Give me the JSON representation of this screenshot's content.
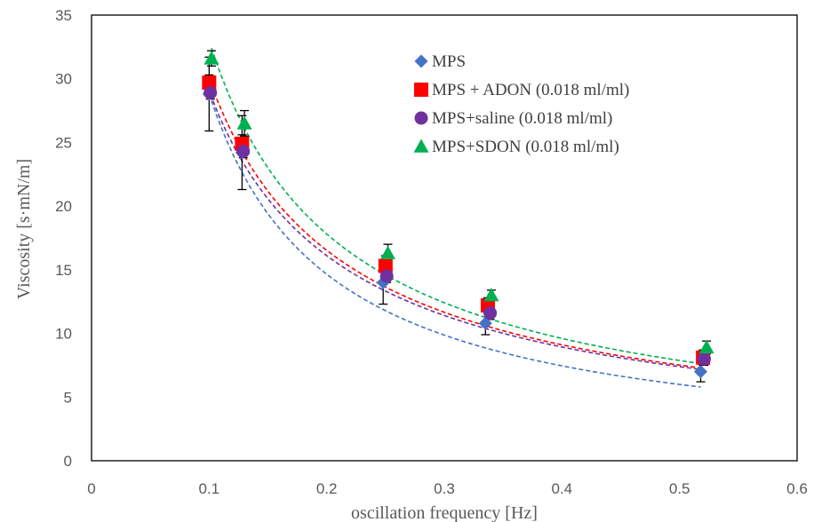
{
  "chart_data": {
    "type": "scatter",
    "xlabel": "oscillation frequency [Hz]",
    "ylabel": "Viscosity [s·mN/m]",
    "xlim": [
      0,
      0.6
    ],
    "ylim": [
      0,
      35
    ],
    "x_ticks": [
      0,
      0.1,
      0.2,
      0.3,
      0.4,
      0.5,
      0.6
    ],
    "x_tick_labels": [
      "0",
      "0.1",
      "0.2",
      "0.3",
      "0.4",
      "0.5",
      "0.6"
    ],
    "y_ticks": [
      0,
      5,
      10,
      15,
      20,
      25,
      30,
      35
    ],
    "y_tick_labels": [
      "0",
      "5",
      "10",
      "15",
      "20",
      "25",
      "30",
      "35"
    ],
    "grid": false,
    "legend_position": "top-right",
    "trendlines": "dashed power-law fit per series",
    "series": [
      {
        "name": "MPS",
        "marker": "diamond",
        "color": "#4472C4",
        "x": [
          0.1,
          0.128,
          0.248,
          0.335,
          0.518
        ],
        "y": [
          28.8,
          24.2,
          14.0,
          10.8,
          7.0
        ],
        "err": [
          2.9,
          2.9,
          1.7,
          0.9,
          0.8
        ],
        "fit": {
          "a": 3.05,
          "b": -0.975
        }
      },
      {
        "name": "MPS + ADON (0.018 ml/ml)",
        "marker": "square",
        "color": "#FF0000",
        "x": [
          0.1,
          0.128,
          0.25,
          0.337,
          0.52
        ],
        "y": [
          29.7,
          24.9,
          15.3,
          12.2,
          8.1
        ],
        "err": [
          0.6,
          0.7,
          0.8,
          0.6,
          0.6
        ],
        "fit": {
          "a": 4.14,
          "b": -0.86
        }
      },
      {
        "name": "MPS+saline (0.018 ml/ml)",
        "marker": "circle",
        "color": "#7030A0",
        "x": [
          0.101,
          0.129,
          0.251,
          0.339,
          0.521
        ],
        "y": [
          28.9,
          24.3,
          14.5,
          11.6,
          8.0
        ],
        "err": [
          0.5,
          0.5,
          0.5,
          0.5,
          0.5
        ],
        "fit": {
          "a": 4.1,
          "b": -0.85
        }
      },
      {
        "name": "MPS+SDON (0.018 ml/ml)",
        "marker": "triangle",
        "color": "#00B050",
        "x": [
          0.102,
          0.13,
          0.252,
          0.34,
          0.523
        ],
        "y": [
          31.6,
          26.5,
          16.3,
          13.0,
          8.9
        ],
        "err": [
          0.6,
          1.0,
          0.7,
          0.4,
          0.5
        ],
        "fit": {
          "a": 4.25,
          "b": -0.89
        }
      }
    ]
  }
}
